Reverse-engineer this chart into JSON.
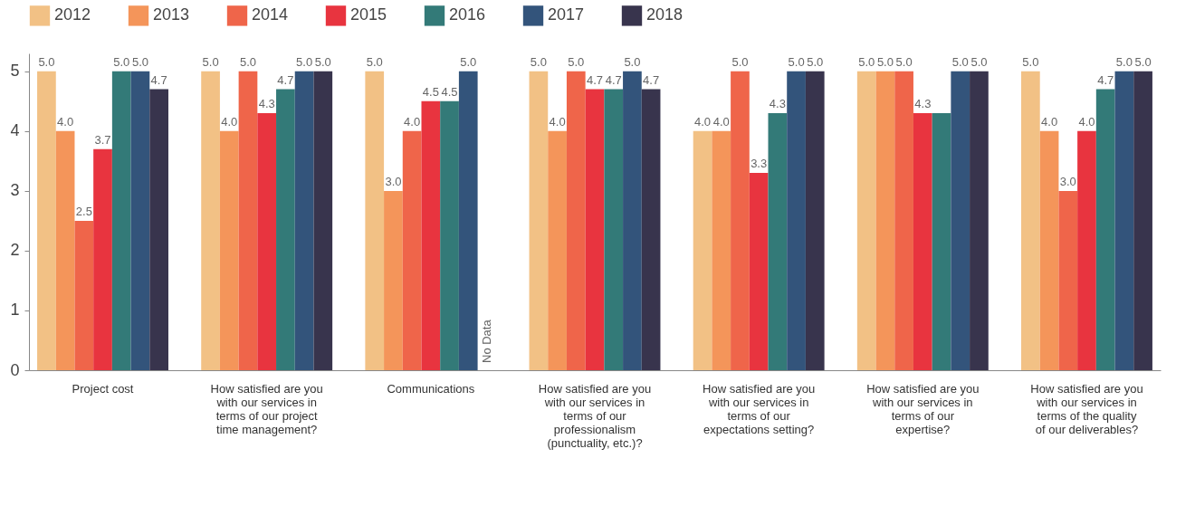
{
  "chart_data": {
    "type": "bar",
    "categories": [
      "Project cost",
      "How satisfied are you with our services in terms of our project time management?",
      "Communications",
      "How satisfied are you with our services in terms of our professionalism (punctuality, etc.)?",
      "How satisfied are you with our services in terms of our expectations setting?",
      "How satisfied are you with our services in terms of our expertise?",
      "How satisfied are you with our services in terms of the quality of our deliverables?"
    ],
    "series": [
      {
        "name": "2012",
        "color": "#f2c185",
        "values": [
          5.0,
          5.0,
          5.0,
          5.0,
          4.0,
          5.0,
          5.0
        ],
        "value_labels": [
          "5.0",
          "5.0",
          "5.0",
          "5.0",
          "4.0",
          "5.0",
          "5.0"
        ]
      },
      {
        "name": "2013",
        "color": "#f4955a",
        "values": [
          4.0,
          4.0,
          3.0,
          4.0,
          4.0,
          5.0,
          4.0
        ],
        "value_labels": [
          "4.0",
          "4.0",
          "3.0",
          "4.0",
          "4.0",
          "5.0",
          "4.0"
        ]
      },
      {
        "name": "2014",
        "color": "#ef654a",
        "values": [
          2.5,
          5.0,
          4.0,
          5.0,
          5.0,
          5.0,
          3.0
        ],
        "value_labels": [
          "2.5",
          "5.0",
          "4.0",
          "5.0",
          "5.0",
          "5.0",
          "3.0"
        ]
      },
      {
        "name": "2015",
        "color": "#e8343f",
        "values": [
          3.7,
          4.3,
          4.5,
          4.7,
          3.3,
          4.3,
          4.0
        ],
        "value_labels": [
          "3.7",
          "4.3",
          "4.5",
          "4.7",
          "3.3",
          "4.3",
          "4.0"
        ]
      },
      {
        "name": "2016",
        "color": "#337a78",
        "values": [
          5.0,
          4.7,
          4.5,
          4.7,
          4.3,
          4.3,
          4.7
        ],
        "value_labels": [
          "5.0",
          "4.7",
          "4.5",
          "4.7",
          "4.3",
          null,
          "4.7"
        ]
      },
      {
        "name": "2017",
        "color": "#33547b",
        "values": [
          5.0,
          5.0,
          5.0,
          5.0,
          5.0,
          5.0,
          5.0
        ],
        "value_labels": [
          "5.0",
          "5.0",
          "5.0",
          "5.0",
          "5.0",
          "5.0",
          "5.0"
        ]
      },
      {
        "name": "2018",
        "color": "#38344d",
        "values": [
          4.7,
          5.0,
          null,
          4.7,
          5.0,
          5.0,
          5.0
        ],
        "value_labels": [
          "4.7",
          "5.0",
          "No Data",
          "4.7",
          "5.0",
          "5.0",
          "5.0"
        ]
      }
    ],
    "ylim": [
      0,
      5.3
    ],
    "yticks": [
      0,
      1,
      2,
      3,
      4,
      5
    ],
    "grid": false,
    "legend": "top"
  }
}
